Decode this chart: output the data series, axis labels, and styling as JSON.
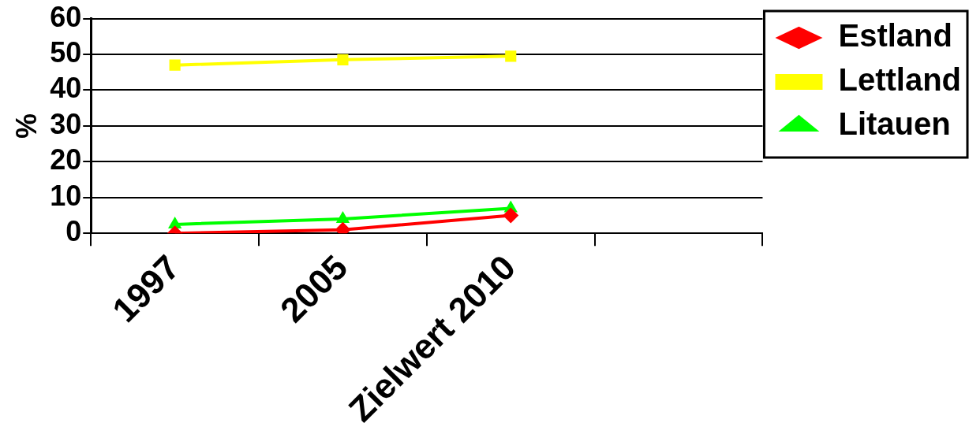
{
  "chart_data": {
    "type": "line",
    "ylabel": "%",
    "categories": [
      "1997",
      "2005",
      "Zielwert 2010",
      null
    ],
    "series": [
      {
        "name": "Estland",
        "color": "#ff0000",
        "marker": "diamond",
        "values": [
          0,
          1,
          5,
          null
        ]
      },
      {
        "name": "Lettland",
        "color": "#ffff00",
        "marker": "square",
        "values": [
          47,
          48.5,
          49.5,
          null
        ]
      },
      {
        "name": "Litauen",
        "color": "#00ff00",
        "marker": "triangle",
        "values": [
          2.5,
          4,
          7,
          null
        ]
      }
    ],
    "ylim": [
      0,
      60
    ],
    "yticks": [
      0,
      10,
      20,
      30,
      40,
      50,
      60
    ],
    "grid": "y",
    "legend": "right"
  }
}
